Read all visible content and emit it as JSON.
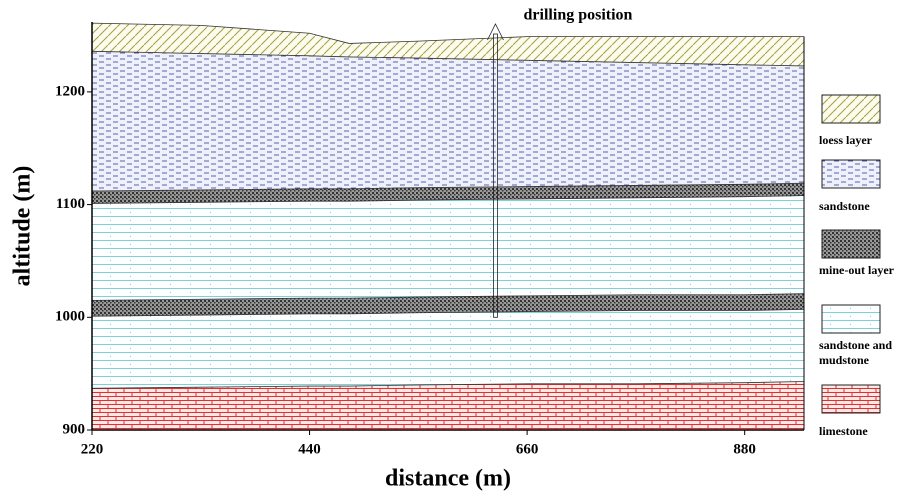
{
  "chart_data": {
    "type": "layers",
    "annotation": "drilling position",
    "xlabel": "distance (m)",
    "ylabel": "altitude (m)",
    "x": [
      220,
      330,
      440,
      480,
      550,
      660,
      770,
      880,
      940
    ],
    "xlim": [
      220,
      940
    ],
    "ylim": [
      900,
      1262
    ],
    "xticks": [
      220,
      440,
      660,
      880
    ],
    "yticks": [
      900,
      1000,
      1100,
      1200
    ],
    "borehole_x": 628,
    "borehole_bottom": 1000,
    "legend": "right",
    "series": [
      {
        "name": "loess layer",
        "color": "#a8a040",
        "tops": [
          [
            1261,
            1259,
            1252,
            1243,
            1245,
            1249,
            1249,
            1249,
            1249
          ]
        ]
      },
      {
        "name": "sandstone",
        "color": "#5a5fb0",
        "tops": [
          [
            1236,
            1234,
            1232,
            1231,
            1230,
            1228,
            1226,
            1224,
            1223
          ]
        ]
      },
      {
        "name": "mine-out layer",
        "color": "#333333",
        "tops": [
          [
            1112,
            1113,
            1114,
            1114,
            1115,
            1116,
            1117,
            1118,
            1119
          ],
          [
            1015,
            1016,
            1017,
            1017,
            1018,
            1019,
            1020,
            1020,
            1021
          ]
        ]
      },
      {
        "name": "sandstone and mudstone",
        "color": "#7fd0d8",
        "tops": [
          [
            1101,
            1102,
            1103,
            1103,
            1104,
            1105,
            1106,
            1107,
            1108
          ],
          [
            1001,
            1002,
            1003,
            1003,
            1004,
            1005,
            1006,
            1006,
            1007
          ]
        ]
      },
      {
        "name": "limestone",
        "color": "#e03030",
        "tops": [
          [
            937,
            938,
            939,
            939,
            940,
            941,
            941,
            942,
            943
          ]
        ]
      }
    ]
  }
}
